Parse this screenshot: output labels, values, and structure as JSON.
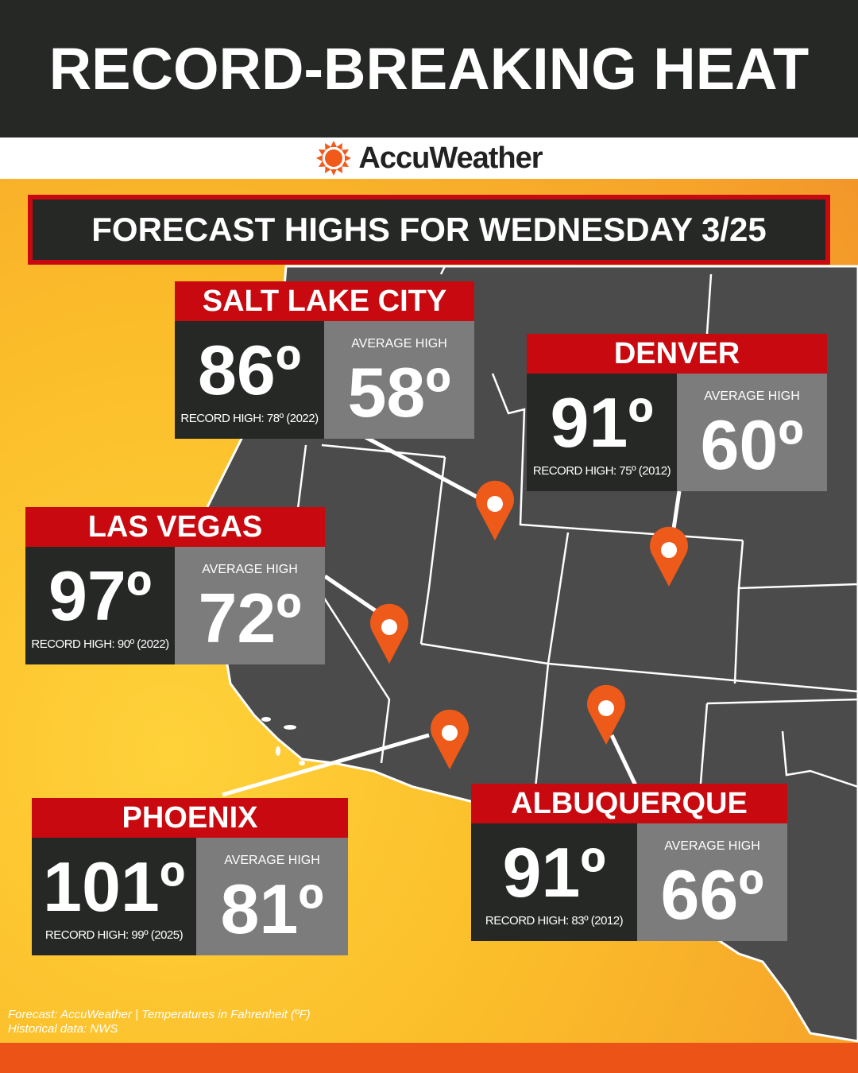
{
  "title": "RECORD-BREAKING HEAT",
  "brand": {
    "name": "AccuWeather",
    "logo_icon": "sun-icon",
    "color": "#f05a1a"
  },
  "subtitle": "FORECAST HIGHS FOR WEDNESDAY 3/25",
  "cities": [
    {
      "name": "SALT LAKE CITY",
      "forecast": "86º",
      "record": "RECORD HIGH: 78º (2022)",
      "avg_label": "AVERAGE HIGH",
      "avg": "58º"
    },
    {
      "name": "DENVER",
      "forecast": "91º",
      "record": "RECORD HIGH: 75º (2012)",
      "avg_label": "AVERAGE HIGH",
      "avg": "60º"
    },
    {
      "name": "LAS VEGAS",
      "forecast": "97º",
      "record": "RECORD HIGH: 90º (2022)",
      "avg_label": "AVERAGE HIGH",
      "avg": "72º"
    },
    {
      "name": "PHOENIX",
      "forecast": "101º",
      "record": "RECORD HIGH: 99º (2025)",
      "avg_label": "AVERAGE HIGH",
      "avg": "81º"
    },
    {
      "name": "ALBUQUERQUE",
      "forecast": "91º",
      "record": "RECORD HIGH: 83º (2012)",
      "avg_label": "AVERAGE HIGH",
      "avg": "66º"
    }
  ],
  "footer": {
    "line1": "Forecast: AccuWeather | Temperatures in Fahrenheit (ºF)",
    "line2": "Historical data: NWS"
  },
  "colors": {
    "header": "#262826",
    "red": "#c8090f",
    "pin": "#ee5a1a",
    "map": "#4a4a4a",
    "bar": "#ec5316"
  }
}
